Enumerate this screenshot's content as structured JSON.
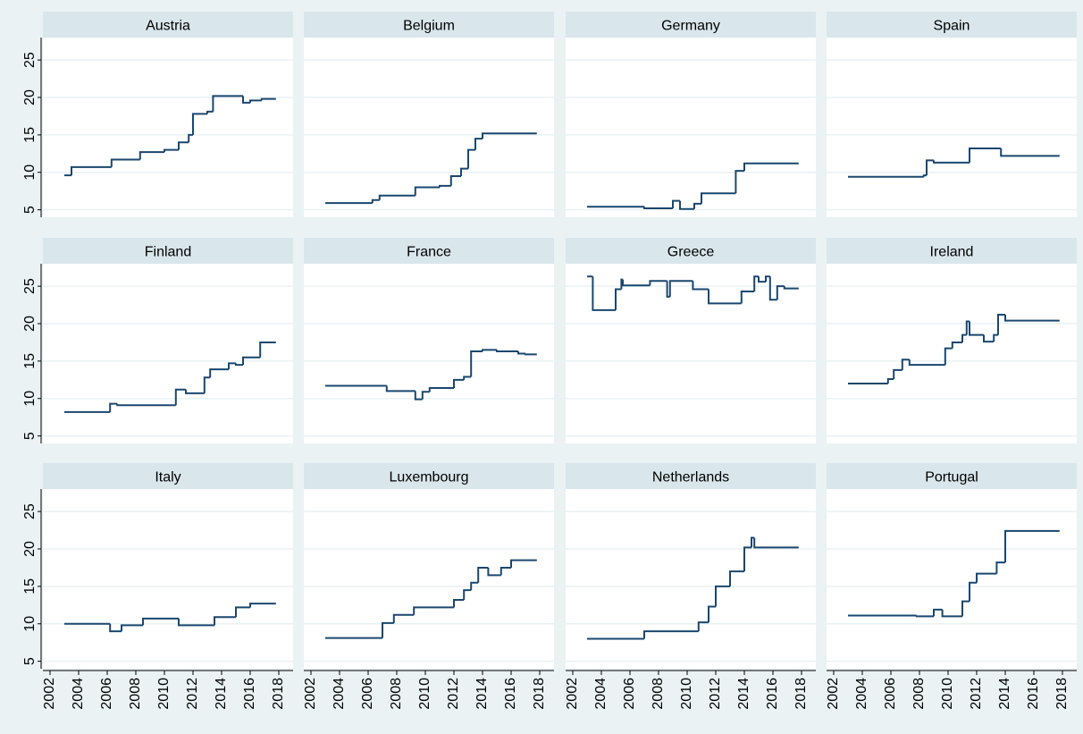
{
  "chart_data": {
    "type": "line",
    "drawstyle": "steps-post",
    "color": "#1a476f",
    "grid": true,
    "xlim": [
      2001.5,
      2019
    ],
    "ylim": [
      4,
      28
    ],
    "xticks": [
      2002,
      2004,
      2006,
      2008,
      2010,
      2012,
      2014,
      2016,
      2018
    ],
    "yticks": [
      5,
      10,
      15,
      20,
      25
    ],
    "panels": [
      {
        "title": "Austria",
        "x": [
          2003,
          2003.5,
          2006.3,
          2008.3,
          2010,
          2011,
          2011.7,
          2012,
          2013,
          2013.4,
          2015.5,
          2016,
          2016.8,
          2017.8
        ],
        "values": [
          9.6,
          10.7,
          11.7,
          12.7,
          13,
          14,
          15,
          17.8,
          18.1,
          20.2,
          19.3,
          19.6,
          19.8,
          19.8
        ]
      },
      {
        "title": "Belgium",
        "x": [
          2003,
          2006.3,
          2006.8,
          2009.3,
          2011,
          2011.8,
          2012.5,
          2013,
          2013.5,
          2014,
          2017.8
        ],
        "values": [
          5.9,
          6.3,
          6.9,
          8,
          8.2,
          9.5,
          10.5,
          13,
          14.5,
          15.2,
          15.2
        ]
      },
      {
        "title": "Germany",
        "x": [
          2003,
          2007,
          2009,
          2009.5,
          2010.5,
          2011,
          2013.4,
          2014,
          2017.8
        ],
        "values": [
          5.4,
          5.2,
          6.2,
          5.1,
          5.8,
          7.2,
          10.2,
          11.2,
          11.2
        ]
      },
      {
        "title": "Spain",
        "x": [
          2003,
          2008.3,
          2008.5,
          2009,
          2011.5,
          2013.7,
          2017.8
        ],
        "values": [
          9.4,
          9.6,
          11.6,
          11.3,
          13.2,
          12.2,
          12.2
        ]
      },
      {
        "title": "Finland",
        "x": [
          2003,
          2006.2,
          2006.7,
          2010.8,
          2011.5,
          2012.8,
          2013.2,
          2014.5,
          2015,
          2015.5,
          2016.7,
          2017.8
        ],
        "values": [
          8.2,
          9.3,
          9.1,
          11.2,
          10.7,
          12.8,
          13.9,
          14.7,
          14.5,
          15.5,
          17.5,
          17.5
        ]
      },
      {
        "title": "France",
        "x": [
          2003,
          2007.3,
          2009.3,
          2009.8,
          2010.3,
          2012,
          2012.7,
          2013.2,
          2014,
          2015,
          2016.5,
          2017,
          2017.8
        ],
        "values": [
          11.7,
          11,
          9.9,
          10.9,
          11.4,
          12.5,
          12.9,
          16.3,
          16.5,
          16.3,
          16,
          15.9,
          15.9
        ]
      },
      {
        "title": "Greece",
        "x": [
          2003,
          2003.4,
          2005,
          2005.4,
          2005.5,
          2007.4,
          2008.6,
          2008.8,
          2010.4,
          2011.5,
          2013.8,
          2014.7,
          2015,
          2015.5,
          2015.8,
          2016.3,
          2016.8,
          2017.8
        ],
        "values": [
          26.3,
          21.8,
          24.6,
          25.9,
          25.1,
          25.7,
          23.6,
          25.7,
          24.6,
          22.7,
          24.3,
          26.3,
          25.6,
          26.3,
          23.2,
          25,
          24.7,
          24.7
        ]
      },
      {
        "title": "Ireland",
        "x": [
          2003,
          2005.8,
          2006.2,
          2006.8,
          2007.3,
          2009.8,
          2010.3,
          2011,
          2011.3,
          2011.5,
          2012.5,
          2013.2,
          2013.5,
          2014,
          2017.8
        ],
        "values": [
          12,
          12.6,
          13.8,
          15.2,
          14.5,
          16.7,
          17.5,
          18.5,
          20.3,
          18.5,
          17.6,
          18.5,
          21.2,
          20.4,
          20.4
        ]
      },
      {
        "title": "Italy",
        "x": [
          2003,
          2006.2,
          2007,
          2008.5,
          2011,
          2013.5,
          2015,
          2016,
          2017.8
        ],
        "values": [
          10,
          9,
          9.8,
          10.7,
          9.8,
          10.9,
          12.2,
          12.7,
          12.7
        ]
      },
      {
        "title": "Luxembourg",
        "x": [
          2003,
          2007,
          2007.8,
          2009.2,
          2012,
          2012.7,
          2013.2,
          2013.7,
          2014.4,
          2015.3,
          2016,
          2017.8
        ],
        "values": [
          8.1,
          10.1,
          11.2,
          12.2,
          13.2,
          14.5,
          15.5,
          17.5,
          16.5,
          17.5,
          18.5,
          18.5
        ]
      },
      {
        "title": "Netherlands",
        "x": [
          2003,
          2007,
          2010.8,
          2011.5,
          2012,
          2013,
          2014,
          2014.5,
          2014.7,
          2017.8
        ],
        "values": [
          8,
          9,
          10.2,
          12.3,
          15,
          17,
          20.2,
          21.5,
          20.2,
          20.2
        ]
      },
      {
        "title": "Portugal",
        "x": [
          2003,
          2007.8,
          2009,
          2009.6,
          2011,
          2011.5,
          2012,
          2013.4,
          2014,
          2017.8
        ],
        "values": [
          11.1,
          11,
          11.9,
          11,
          13,
          15.5,
          16.7,
          18.2,
          22.4,
          22.4
        ]
      }
    ]
  }
}
